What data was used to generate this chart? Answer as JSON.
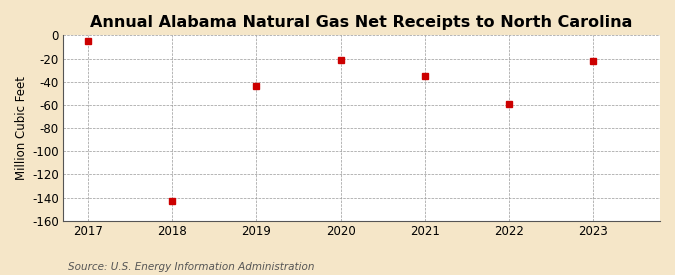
{
  "title": "Annual Alabama Natural Gas Net Receipts to North Carolina",
  "ylabel": "Million Cubic Feet",
  "source": "Source: U.S. Energy Information Administration",
  "years": [
    2017,
    2018,
    2019,
    2020,
    2021,
    2022,
    2023
  ],
  "values": [
    -5,
    -143,
    -44,
    -21,
    -35,
    -59,
    -22
  ],
  "ylim": [
    -160,
    0
  ],
  "yticks": [
    0,
    -20,
    -40,
    -60,
    -80,
    -100,
    -120,
    -140,
    -160
  ],
  "marker_color": "#cc0000",
  "marker_size": 4,
  "bg_color": "#f5e6c8",
  "plot_bg_color": "#ffffff",
  "grid_color": "#999999",
  "title_fontsize": 11.5,
  "label_fontsize": 8.5,
  "tick_fontsize": 8.5,
  "source_fontsize": 7.5,
  "xlim_left": 2016.7,
  "xlim_right": 2023.8
}
